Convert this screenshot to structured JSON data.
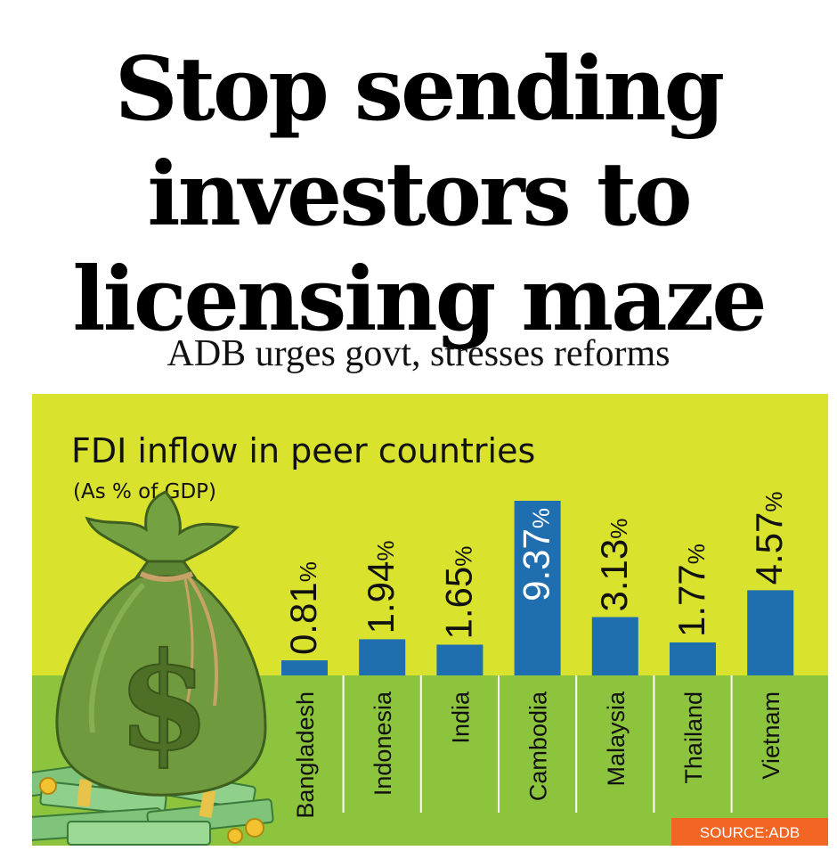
{
  "headline": "Stop sending investors to licensing maze",
  "subheadline": "ADB urges govt, stresses reforms",
  "colors": {
    "upper_bg": "#d9e22d",
    "lower_bg": "#8dc43e",
    "bar": "#1f6fb0",
    "source_bg": "#f26522",
    "bag": "#6f9a3d"
  },
  "icon": "money-bag-with-cash-stacks-icon",
  "chart_data": {
    "type": "bar",
    "title": "FDI inflow in peer countries",
    "subtitle": "(As % of GDP)",
    "unit": "%",
    "categories": [
      "Bangladesh",
      "Indonesia",
      "India",
      "Cambodia",
      "Malaysia",
      "Thailand",
      "Vietnam"
    ],
    "values": [
      0.81,
      1.94,
      1.65,
      9.37,
      3.13,
      1.77,
      4.57
    ],
    "value_labels": [
      "0.81",
      "1.94",
      "1.65",
      "9.37",
      "3.13",
      "1.77",
      "4.57"
    ],
    "ylim": [
      0,
      9.37
    ],
    "grid": false,
    "source": "SOURCE:ADB"
  }
}
